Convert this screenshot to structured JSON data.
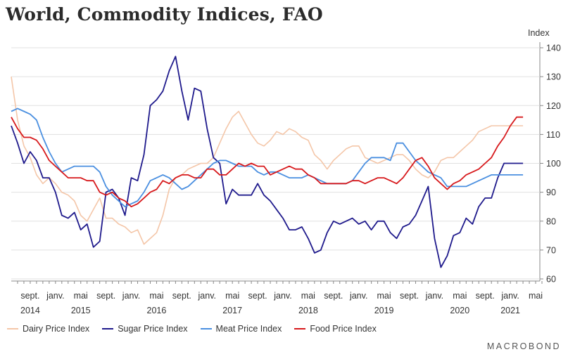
{
  "chart_data": {
    "type": "line",
    "title": "World, Commodity Indices, FAO",
    "ylabel": "Index",
    "ylim": [
      60,
      140
    ],
    "yticks": [
      60,
      70,
      80,
      90,
      100,
      110,
      120,
      130,
      140
    ],
    "x_start": "2014-06",
    "x_end": "2021-06",
    "x_tick_labels": [
      {
        "date": "2014-09",
        "label": "sept."
      },
      {
        "date": "2015-01",
        "label": "janv."
      },
      {
        "date": "2015-05",
        "label": "mai"
      },
      {
        "date": "2015-09",
        "label": "sept."
      },
      {
        "date": "2016-01",
        "label": "janv."
      },
      {
        "date": "2016-05",
        "label": "mai"
      },
      {
        "date": "2016-09",
        "label": "sept."
      },
      {
        "date": "2017-01",
        "label": "janv."
      },
      {
        "date": "2017-05",
        "label": "mai"
      },
      {
        "date": "2017-09",
        "label": "sept."
      },
      {
        "date": "2018-01",
        "label": "janv."
      },
      {
        "date": "2018-05",
        "label": "mai"
      },
      {
        "date": "2018-09",
        "label": "sept."
      },
      {
        "date": "2019-01",
        "label": "janv."
      },
      {
        "date": "2019-05",
        "label": "mai"
      },
      {
        "date": "2019-09",
        "label": "sept."
      },
      {
        "date": "2020-01",
        "label": "janv."
      },
      {
        "date": "2020-05",
        "label": "mai"
      },
      {
        "date": "2020-09",
        "label": "sept."
      },
      {
        "date": "2021-01",
        "label": "janv."
      },
      {
        "date": "2021-05",
        "label": "mai"
      }
    ],
    "year_labels": [
      {
        "date": "2014-09",
        "label": "2014"
      },
      {
        "date": "2015-05",
        "label": "2015"
      },
      {
        "date": "2016-05",
        "label": "2016"
      },
      {
        "date": "2017-05",
        "label": "2017"
      },
      {
        "date": "2018-05",
        "label": "2018"
      },
      {
        "date": "2019-05",
        "label": "2019"
      },
      {
        "date": "2020-05",
        "label": "2020"
      },
      {
        "date": "2021-01",
        "label": "2021"
      }
    ],
    "x": [
      "2014-06",
      "2014-07",
      "2014-08",
      "2014-09",
      "2014-10",
      "2014-11",
      "2014-12",
      "2015-01",
      "2015-02",
      "2015-03",
      "2015-04",
      "2015-05",
      "2015-06",
      "2015-07",
      "2015-08",
      "2015-09",
      "2015-10",
      "2015-11",
      "2015-12",
      "2016-01",
      "2016-02",
      "2016-03",
      "2016-04",
      "2016-05",
      "2016-06",
      "2016-07",
      "2016-08",
      "2016-09",
      "2016-10",
      "2016-11",
      "2016-12",
      "2017-01",
      "2017-02",
      "2017-03",
      "2017-04",
      "2017-05",
      "2017-06",
      "2017-07",
      "2017-08",
      "2017-09",
      "2017-10",
      "2017-11",
      "2017-12",
      "2018-01",
      "2018-02",
      "2018-03",
      "2018-04",
      "2018-05",
      "2018-06",
      "2018-07",
      "2018-08",
      "2018-09",
      "2018-10",
      "2018-11",
      "2018-12",
      "2019-01",
      "2019-02",
      "2019-03",
      "2019-04",
      "2019-05",
      "2019-06",
      "2019-07",
      "2019-08",
      "2019-09",
      "2019-10",
      "2019-11",
      "2019-12",
      "2020-01",
      "2020-02",
      "2020-03",
      "2020-04",
      "2020-05",
      "2020-06",
      "2020-07",
      "2020-08",
      "2020-09",
      "2020-10",
      "2020-11",
      "2020-12",
      "2021-01",
      "2021-02",
      "2021-03"
    ],
    "series": [
      {
        "name": "Dairy Price Index",
        "color": "#f4c6a8",
        "values": [
          130,
          115,
          106,
          102,
          96,
          93,
          95,
          93,
          90,
          89,
          87,
          82,
          80,
          84,
          88,
          81,
          81,
          79,
          78,
          76,
          77,
          72,
          74,
          76,
          82,
          91,
          95,
          96,
          98,
          99,
          100,
          100,
          102,
          107,
          112,
          116,
          118,
          114,
          110,
          107,
          106,
          108,
          111,
          110,
          112,
          111,
          109,
          108,
          103,
          101,
          98,
          101,
          103,
          105,
          106,
          106,
          102,
          101,
          100,
          101,
          102,
          103,
          103,
          101,
          98,
          96,
          95,
          97,
          101,
          102,
          102,
          104,
          106,
          108,
          111,
          112,
          113,
          113,
          113,
          113,
          113,
          113
        ]
      },
      {
        "name": "Sugar Price Index",
        "color": "#1f1a8c",
        "values": [
          113,
          107,
          100,
          104,
          101,
          95,
          95,
          90,
          82,
          81,
          83,
          77,
          79,
          71,
          73,
          90,
          91,
          88,
          82,
          95,
          94,
          103,
          120,
          122,
          125,
          132,
          137,
          125,
          115,
          126,
          125,
          112,
          102,
          100,
          86,
          91,
          89,
          89,
          89,
          93,
          89,
          87,
          84,
          81,
          77,
          77,
          78,
          74,
          69,
          70,
          76,
          80,
          79,
          80,
          81,
          79,
          80,
          77,
          80,
          80,
          76,
          74,
          78,
          79,
          82,
          87,
          92,
          74,
          64,
          68,
          75,
          76,
          81,
          79,
          85,
          88,
          88,
          95,
          100,
          100,
          100,
          100
        ]
      },
      {
        "name": "Meat Price Index",
        "color": "#4a8fe0",
        "values": [
          118,
          119,
          118,
          117,
          115,
          109,
          104,
          100,
          97,
          98,
          99,
          99,
          99,
          99,
          97,
          92,
          89,
          87,
          85,
          86,
          87,
          90,
          94,
          95,
          96,
          95,
          93,
          91,
          92,
          94,
          96,
          98,
          100,
          101,
          101,
          100,
          99,
          99,
          99,
          97,
          96,
          97,
          97,
          96,
          95,
          95,
          95,
          96,
          95,
          94,
          93,
          93,
          93,
          93,
          94,
          97,
          100,
          102,
          102,
          102,
          101,
          107,
          107,
          104,
          101,
          99,
          97,
          96,
          95,
          92,
          92,
          92,
          92,
          93,
          94,
          95,
          96,
          96,
          96,
          96,
          96,
          96
        ]
      },
      {
        "name": "Food Price Index",
        "color": "#d7191c",
        "values": [
          116,
          112,
          109,
          109,
          108,
          105,
          101,
          99,
          97,
          95,
          95,
          95,
          94,
          94,
          90,
          89,
          90,
          88,
          87,
          85,
          86,
          88,
          90,
          91,
          94,
          93,
          95,
          96,
          96,
          95,
          95,
          98,
          98,
          96,
          96,
          98,
          100,
          99,
          100,
          99,
          99,
          96,
          97,
          98,
          99,
          98,
          98,
          96,
          95,
          93,
          93,
          93,
          93,
          93,
          94,
          94,
          93,
          94,
          95,
          95,
          94,
          93,
          95,
          98,
          101,
          102,
          99,
          95,
          93,
          91,
          93,
          94,
          96,
          97,
          98,
          100,
          102,
          106,
          109,
          113,
          116,
          116
        ]
      }
    ]
  },
  "branding": "MACROBOND"
}
